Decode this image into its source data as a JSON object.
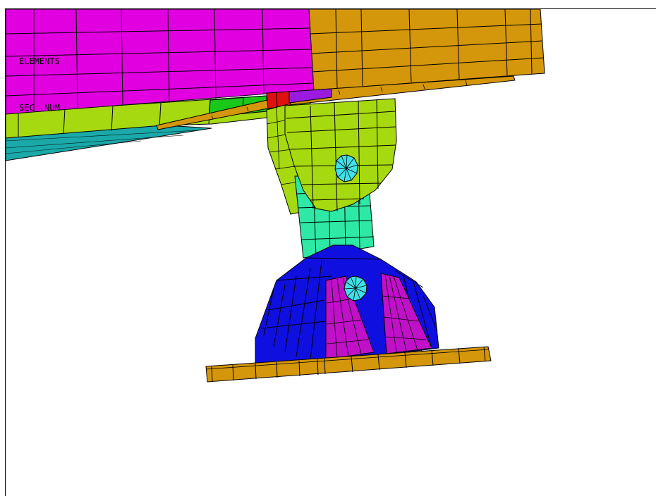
{
  "legend": {
    "line1": "ELEMENTS",
    "line2": "SEC  NUM"
  },
  "colors": {
    "magenta": "#E000E0",
    "orange": "#D4960A",
    "yellow_green": "#A6D90F",
    "green": "#19C819",
    "teal": "#1AA8A8",
    "sea_green": "#2EE8A6",
    "blue": "#0F0FE0",
    "cyan": "#3FE0E8",
    "red": "#E01010",
    "purple": "#9A1AE0",
    "mesh_line": "#000000",
    "background": "#FFFFFF"
  }
}
